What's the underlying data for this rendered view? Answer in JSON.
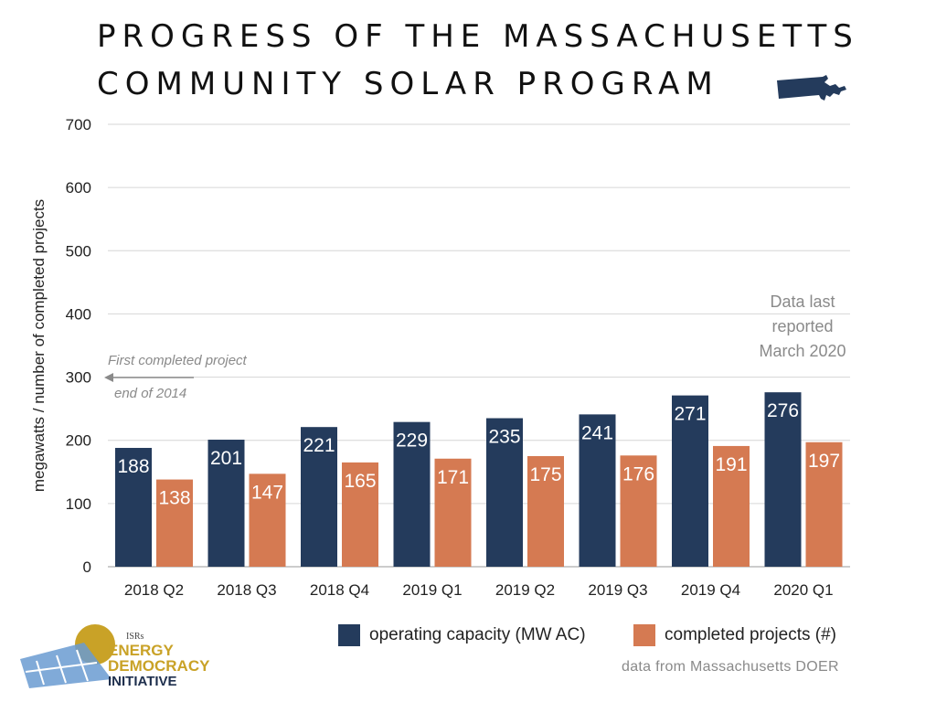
{
  "title": {
    "line1": "PROGRESS OF THE MASSACHUSETTS",
    "line2": "COMMUNITY SOLAR PROGRAM"
  },
  "chart_data": {
    "type": "bar",
    "categories": [
      "2018 Q2",
      "2018 Q3",
      "2018 Q4",
      "2019 Q1",
      "2019 Q2",
      "2019 Q3",
      "2019 Q4",
      "2020 Q1"
    ],
    "series": [
      {
        "name": "operating capacity (MW AC)",
        "color": "#243b5c",
        "values": [
          188,
          201,
          221,
          229,
          235,
          241,
          271,
          276
        ]
      },
      {
        "name": "completed projects (#)",
        "color": "#d57a52",
        "values": [
          138,
          147,
          165,
          171,
          175,
          176,
          191,
          197
        ]
      }
    ],
    "ylabel": "megawatts / number of completed projects",
    "ylim": [
      0,
      700
    ],
    "yticks": [
      0,
      100,
      200,
      300,
      400,
      500,
      600,
      700
    ],
    "grid": true,
    "legend": "bottom"
  },
  "annotations": {
    "data_note": [
      "Data last",
      "reported",
      "March 2020"
    ],
    "first_project_line1": "First completed project",
    "first_project_line2": "end of 2014"
  },
  "source": "data from Massachusetts DOER",
  "logo": {
    "small": "ISRs",
    "line1": "ENERGY",
    "line2": "DEMOCRACY",
    "line3": "INITIATIVE"
  },
  "colors": {
    "navy": "#243b5c",
    "orange": "#d57a52",
    "grid": "#d6d6d6",
    "annotation": "#8a8a8a"
  }
}
